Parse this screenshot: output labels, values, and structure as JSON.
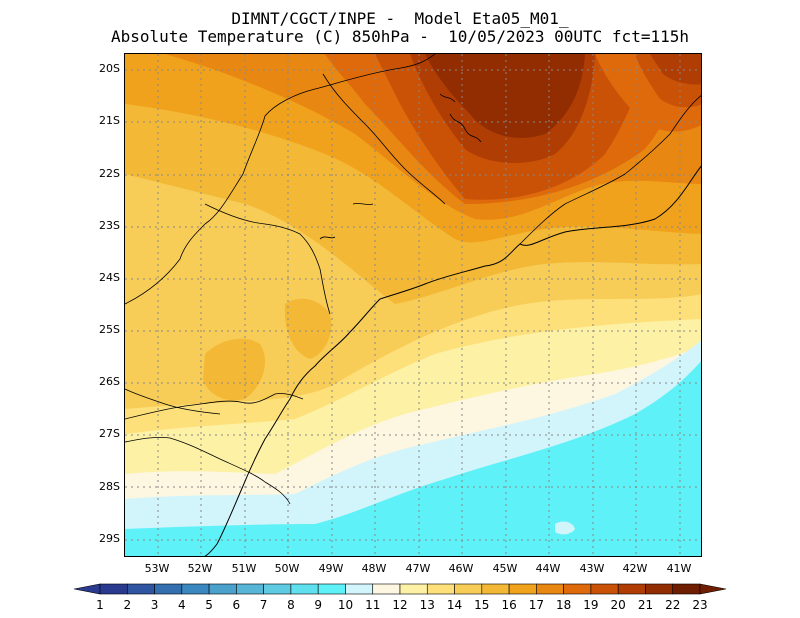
{
  "title": {
    "line1": "DIMNT/CGCT/INPE -  Model Eta05_M01_",
    "line2": "Absolute Temperature (C) 850hPa -  10/05/2023 00UTC fct=115h"
  },
  "map": {
    "lat_labels": [
      "20S",
      "21S",
      "22S",
      "23S",
      "24S",
      "25S",
      "26S",
      "27S",
      "28S",
      "29S"
    ],
    "lon_labels": [
      "53W",
      "52W",
      "51W",
      "50W",
      "49W",
      "48W",
      "47W",
      "46W",
      "45W",
      "44W",
      "43W",
      "42W",
      "41W"
    ],
    "gridlines": "dotted",
    "coastline": true,
    "state_borders": true
  },
  "colorbar": {
    "labels": [
      "1",
      "2",
      "3",
      "4",
      "5",
      "6",
      "7",
      "8",
      "9",
      "10",
      "11",
      "12",
      "13",
      "14",
      "15",
      "16",
      "17",
      "18",
      "19",
      "20",
      "21",
      "22",
      "23"
    ],
    "colors": [
      "#2a3b8f",
      "#2f55a0",
      "#3470b0",
      "#3a88bf",
      "#4aa1cc",
      "#57b6d8",
      "#5fcbe3",
      "#5ee0ef",
      "#5ef2f8",
      "#d2f4fb",
      "#fdf7e1",
      "#fdf1a6",
      "#fde07a",
      "#f7cd58",
      "#f3b936",
      "#f0a21c",
      "#e88712",
      "#de6a0c",
      "#c95206",
      "#b03d03",
      "#922d02",
      "#6f1e02"
    ]
  }
}
